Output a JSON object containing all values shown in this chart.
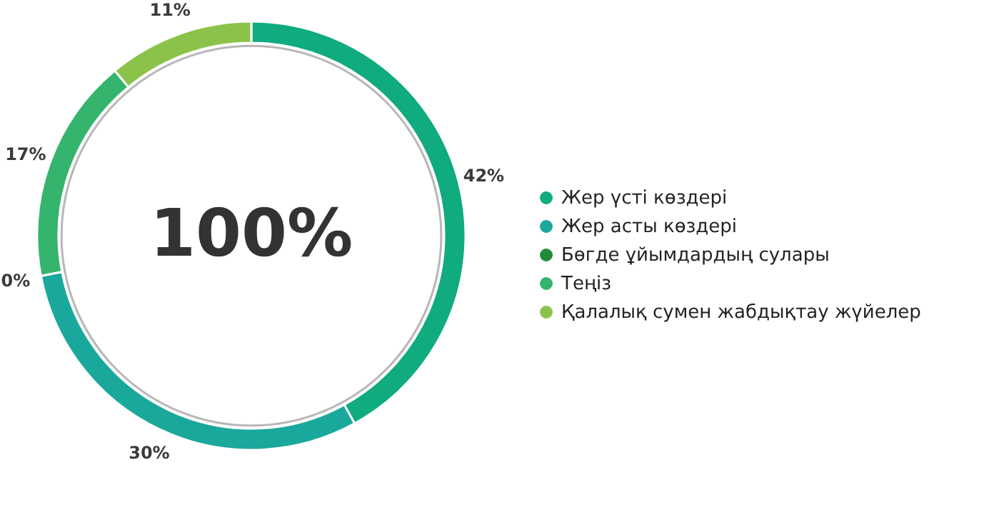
{
  "chart_data": {
    "type": "donut",
    "categories": [
      "Жер үсті көздері",
      "Жер асты көздері",
      "Бөгде ұйымдардың сулары",
      "Теңіз",
      "Қалалық сумен жабдықтау жүйелер"
    ],
    "values": [
      42,
      30,
      0,
      17,
      11
    ],
    "value_labels": [
      "42%",
      "30%",
      "0%",
      "17%",
      "11%"
    ],
    "colors": [
      "#10ab7e",
      "#1aa89c",
      "#238c3a",
      "#35b46e",
      "#8bc34a"
    ],
    "annotations": [
      "100%"
    ],
    "legend": "right"
  }
}
